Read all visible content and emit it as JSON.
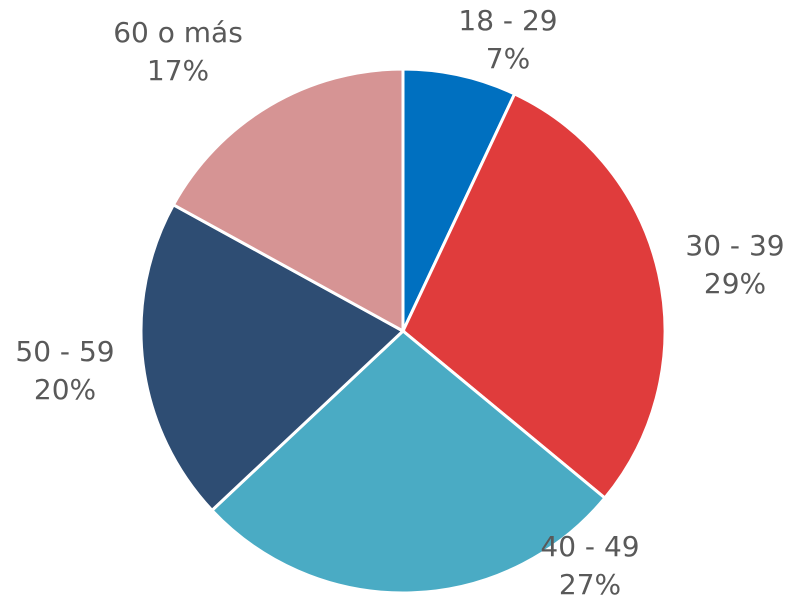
{
  "chart_data": {
    "type": "pie",
    "categories": [
      "18 - 29",
      "30 - 39",
      "40 - 49",
      "50 - 59",
      "60 o más"
    ],
    "values": [
      7,
      29,
      27,
      20,
      17
    ],
    "value_labels": [
      "7%",
      "29%",
      "27%",
      "20%",
      "17%"
    ],
    "colors": [
      "#0070c0",
      "#e03c3c",
      "#4aabc4",
      "#2e4d73",
      "#d69494"
    ]
  }
}
